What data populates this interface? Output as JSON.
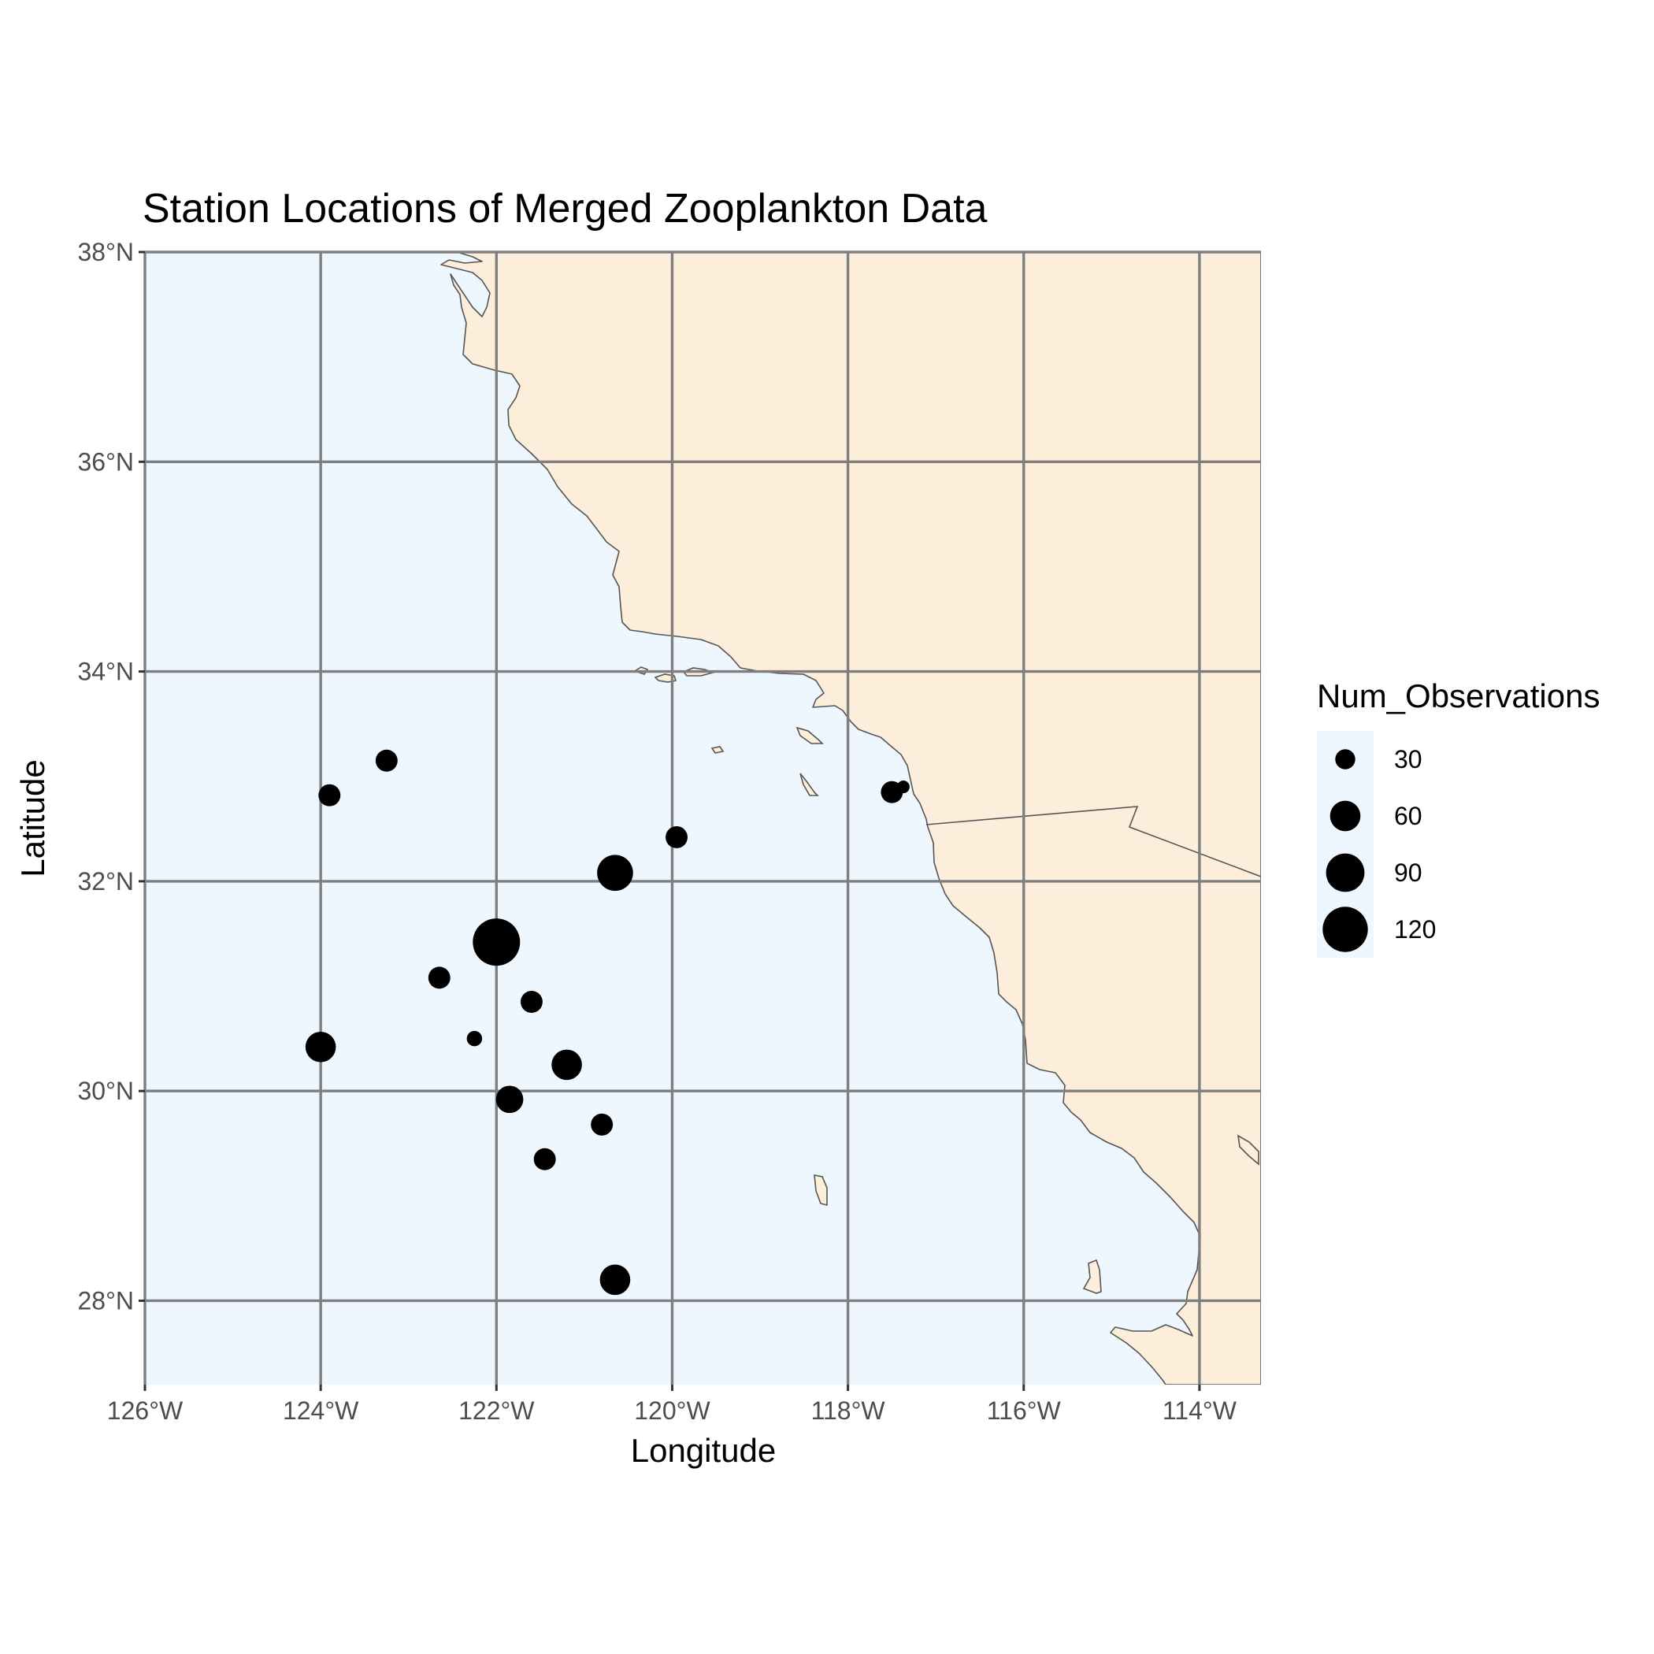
{
  "chart_data": {
    "type": "scatter",
    "map": "bubble map",
    "title": "Station Locations of Merged Zooplankton Data",
    "xlabel": "Longitude",
    "ylabel": "Latitude",
    "xlim": [
      -126,
      -113.3
    ],
    "ylim": [
      27.2,
      38
    ],
    "x_ticks": [
      -126,
      -124,
      -122,
      -120,
      -118,
      -116,
      -114
    ],
    "x_tick_labels": [
      "126°W",
      "124°W",
      "122°W",
      "120°W",
      "118°W",
      "116°W",
      "114°W"
    ],
    "y_ticks": [
      28,
      30,
      32,
      34,
      36,
      38
    ],
    "y_tick_labels": [
      "28°N",
      "30°N",
      "32°N",
      "34°N",
      "36°N",
      "38°N"
    ],
    "grid": true,
    "legend": {
      "title": "Num_Observations",
      "position": "right",
      "breaks": [
        30,
        60,
        90,
        120
      ],
      "labels": [
        "30",
        "60",
        "90",
        "120"
      ]
    },
    "size_range": [
      15,
      130
    ],
    "points": [
      {
        "lon": -123.25,
        "lat": 33.15,
        "n": 35
      },
      {
        "lon": -123.9,
        "lat": 32.82,
        "n": 35
      },
      {
        "lon": -119.95,
        "lat": 32.42,
        "n": 35
      },
      {
        "lon": -117.5,
        "lat": 32.85,
        "n": 35
      },
      {
        "lon": -117.37,
        "lat": 32.9,
        "n": 15
      },
      {
        "lon": -120.65,
        "lat": 32.08,
        "n": 80
      },
      {
        "lon": -122.0,
        "lat": 31.42,
        "n": 130
      },
      {
        "lon": -122.65,
        "lat": 31.08,
        "n": 35
      },
      {
        "lon": -121.6,
        "lat": 30.85,
        "n": 35
      },
      {
        "lon": -122.25,
        "lat": 30.5,
        "n": 20
      },
      {
        "lon": -124.0,
        "lat": 30.42,
        "n": 60
      },
      {
        "lon": -121.2,
        "lat": 30.25,
        "n": 60
      },
      {
        "lon": -121.85,
        "lat": 29.92,
        "n": 50
      },
      {
        "lon": -120.8,
        "lat": 29.68,
        "n": 35
      },
      {
        "lon": -121.45,
        "lat": 29.35,
        "n": 35
      },
      {
        "lon": -120.65,
        "lat": 28.2,
        "n": 60
      }
    ],
    "colors": {
      "ocean": "#eef6fe",
      "land": "#fdeedb",
      "coastline": "#555555",
      "grid": "#7f7f7f",
      "points": "#000000"
    }
  }
}
